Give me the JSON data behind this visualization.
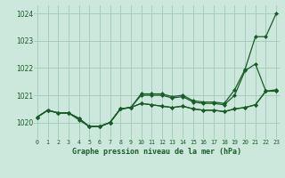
{
  "title": "Graphe pression niveau de la mer (hPa)",
  "background_color": "#cce8dc",
  "grid_color": "#a0c8b8",
  "line_color": "#1a5c28",
  "ylim": [
    1019.4,
    1024.3
  ],
  "yticks": [
    1020,
    1021,
    1022,
    1023,
    1024
  ],
  "xlim": [
    -0.3,
    23.3
  ],
  "x_labels": [
    "0",
    "1",
    "2",
    "3",
    "4",
    "5",
    "6",
    "7",
    "8",
    "9",
    "10",
    "11",
    "12",
    "13",
    "14",
    "15",
    "16",
    "17",
    "18",
    "19",
    "20",
    "21",
    "22",
    "23"
  ],
  "series": [
    [
      1020.2,
      1020.45,
      1020.35,
      1020.35,
      1020.15,
      1019.85,
      1019.85,
      1020.0,
      1020.5,
      1020.55,
      1021.05,
      1021.05,
      1021.05,
      1020.95,
      1021.0,
      1020.8,
      1020.75,
      1020.75,
      1020.7,
      1021.2,
      1021.95,
      1023.15,
      1023.15,
      1024.0
    ],
    [
      1020.2,
      1020.45,
      1020.35,
      1020.35,
      1020.15,
      1019.85,
      1019.85,
      1020.0,
      1020.5,
      1020.55,
      1021.0,
      1021.0,
      1021.0,
      1020.9,
      1020.95,
      1020.75,
      1020.7,
      1020.7,
      1020.65,
      1021.0,
      1021.9,
      1022.15,
      1021.15,
      1021.2
    ],
    [
      1020.2,
      1020.45,
      1020.35,
      1020.35,
      1020.15,
      1019.85,
      1019.85,
      1020.0,
      1020.5,
      1020.55,
      1020.7,
      1020.65,
      1020.6,
      1020.55,
      1020.6,
      1020.5,
      1020.45,
      1020.45,
      1020.4,
      1020.5,
      1020.55,
      1020.65,
      1021.15,
      1021.15
    ],
    [
      1020.2,
      1020.45,
      1020.35,
      1020.35,
      1020.1,
      1019.85,
      1019.85,
      1020.0,
      1020.5,
      1020.55,
      1020.7,
      1020.65,
      1020.6,
      1020.55,
      1020.6,
      1020.5,
      1020.45,
      1020.45,
      1020.4,
      1020.5,
      1020.55,
      1020.65,
      1021.15,
      1021.15
    ]
  ]
}
